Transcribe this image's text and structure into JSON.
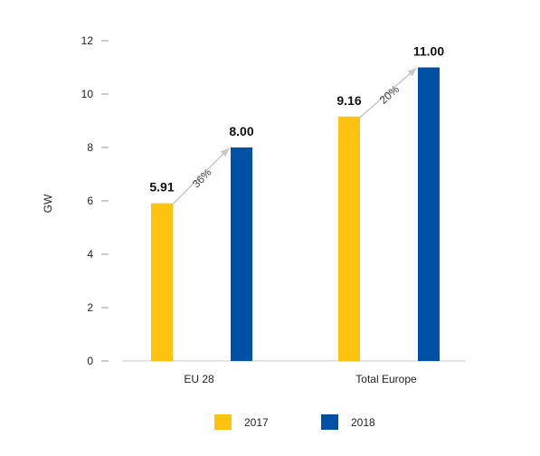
{
  "chart_data": {
    "type": "bar",
    "categories": [
      "EU 28",
      "Total Europe"
    ],
    "series": [
      {
        "name": "2017",
        "values": [
          5.91,
          9.16
        ],
        "color": "#FFC20E"
      },
      {
        "name": "2018",
        "values": [
          8.0,
          11.0
        ],
        "color": "#0051A5"
      }
    ],
    "data_labels": [
      [
        "5.91",
        "9.16"
      ],
      [
        "8.00",
        "11.00"
      ]
    ],
    "growth_annotations": [
      "36%",
      "20%"
    ],
    "ylabel": "GW",
    "ylim": [
      0,
      12
    ],
    "yticks": [
      "0",
      "2",
      "4",
      "6",
      "8",
      "10",
      "12"
    ],
    "grid": false,
    "legend_position": "bottom-center",
    "arrow_color": "#c8c8c8"
  }
}
